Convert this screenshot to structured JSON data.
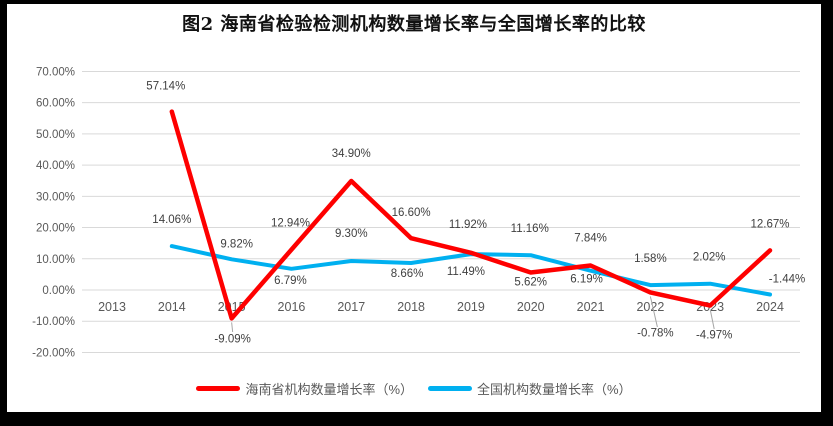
{
  "chart_data": {
    "type": "line",
    "title": "图2 海南省检验检测机构数量增长率与全国增长率的比较",
    "categories": [
      "2013",
      "2014",
      "2015",
      "2016",
      "2017",
      "2018",
      "2019",
      "2020",
      "2021",
      "2022",
      "2023",
      "2024"
    ],
    "series": [
      {
        "name": "海南省机构数量增长率（%）",
        "color": "#fe0000",
        "values": [
          null,
          57.14,
          -9.09,
          12.94,
          34.9,
          16.6,
          11.92,
          5.62,
          7.84,
          -0.78,
          -4.97,
          12.67
        ],
        "labels": [
          null,
          "57.14%",
          "-9.09%",
          "12.94%",
          "34.90%",
          "16.60%",
          "11.92%",
          "5.62%",
          "7.84%",
          "-0.78%",
          "-4.97%",
          "12.67%"
        ]
      },
      {
        "name": "全国机构数量增长率（%）",
        "color": "#00b0f0",
        "values": [
          null,
          14.06,
          9.82,
          6.79,
          9.3,
          8.66,
          11.49,
          11.16,
          6.19,
          1.58,
          2.02,
          -1.44
        ],
        "labels": [
          null,
          "14.06%",
          "9.82%",
          "6.79%",
          "9.30%",
          "8.66%",
          "11.49%",
          "11.16%",
          "6.19%",
          "1.58%",
          "2.02%",
          "-1.44%"
        ]
      }
    ],
    "ylim": [
      -20,
      70
    ],
    "y_ticks": [
      70,
      60,
      50,
      40,
      30,
      20,
      10,
      0,
      -10,
      -20
    ],
    "y_tick_labels": [
      "70.00%",
      "60.00%",
      "50.00%",
      "40.00%",
      "30.00%",
      "20.00%",
      "10.00%",
      "0.00%",
      "-10.00%",
      "-20.00%"
    ],
    "grid": true,
    "legend_position": "bottom",
    "data_labels": true
  },
  "colors": {
    "background": "#000000",
    "plot_background": "#ffffff",
    "gridline": "#d9d9d9",
    "axis_text": "#595959",
    "data_label_text": "#404040",
    "leader_line": "#a6a6a6",
    "title_text": "#111111"
  }
}
